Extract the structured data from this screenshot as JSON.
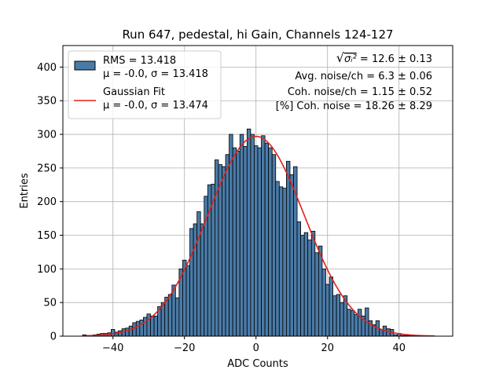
{
  "chart_data": {
    "type": "bar",
    "title": "Run 647, pedestal, hi Gain, Channels 124-127",
    "xlabel": "ADC Counts",
    "ylabel": "Entries",
    "xlim": [
      -54,
      55
    ],
    "ylim": [
      0,
      432
    ],
    "xticks": [
      -40,
      -20,
      0,
      20,
      40
    ],
    "yticks": [
      0,
      50,
      100,
      150,
      200,
      250,
      300,
      350,
      400
    ],
    "grid": true,
    "bin_width": 1,
    "bin_centers": [
      -48,
      -47,
      -46,
      -45,
      -44,
      -43,
      -42,
      -41,
      -40,
      -39,
      -38,
      -37,
      -36,
      -35,
      -34,
      -33,
      -32,
      -31,
      -30,
      -29,
      -28,
      -27,
      -26,
      -25,
      -24,
      -23,
      -22,
      -21,
      -20,
      -19,
      -18,
      -17,
      -16,
      -15,
      -14,
      -13,
      -12,
      -11,
      -10,
      -9,
      -8,
      -7,
      -6,
      -5,
      -4,
      -3,
      -2,
      -1,
      0,
      1,
      2,
      3,
      4,
      5,
      6,
      7,
      8,
      9,
      10,
      11,
      12,
      13,
      14,
      15,
      16,
      17,
      18,
      19,
      20,
      21,
      22,
      23,
      24,
      25,
      26,
      27,
      28,
      29,
      30,
      31,
      32,
      33,
      34,
      35,
      36,
      37,
      38,
      39,
      40,
      41,
      42,
      43,
      44,
      45,
      46,
      47,
      48,
      49,
      50
    ],
    "counts": [
      2,
      1,
      1,
      2,
      3,
      4,
      4,
      5,
      10,
      6,
      8,
      11,
      12,
      15,
      20,
      22,
      24,
      28,
      33,
      30,
      30,
      44,
      50,
      58,
      62,
      76,
      57,
      100,
      113,
      105,
      160,
      167,
      185,
      167,
      208,
      225,
      226,
      262,
      255,
      252,
      270,
      300,
      280,
      275,
      300,
      282,
      308,
      300,
      283,
      280,
      298,
      287,
      280,
      270,
      230,
      222,
      220,
      260,
      240,
      252,
      170,
      150,
      154,
      143,
      156,
      124,
      134,
      100,
      77,
      88,
      60,
      62,
      50,
      60,
      40,
      38,
      32,
      40,
      30,
      42,
      23,
      17,
      23,
      10,
      15,
      11,
      10,
      2,
      4,
      1,
      1,
      1,
      0,
      0,
      0,
      0,
      0,
      0,
      0
    ],
    "series": [
      {
        "name": "RMS = 13.418",
        "name_line2": "μ = -0.0, σ = 13.418",
        "type": "histogram",
        "color": "#4a7ba7",
        "edge_color": "#000000"
      },
      {
        "name": "Gaussian Fit",
        "name_line2": "μ = -0.0, σ = 13.474",
        "type": "line",
        "color": "#e0201b",
        "mu": 0.0,
        "sigma": 13.474,
        "amplitude": 297
      }
    ],
    "legend_position": "top-left",
    "annotations": [
      {
        "prefix": "√",
        "symbol": "σᵢ²",
        "text": " = 12.6 ± 0.13"
      },
      {
        "text": "Avg. noise/ch = 6.3 ± 0.06"
      },
      {
        "text": "Coh. noise/ch = 1.15 ± 0.52"
      },
      {
        "text": "[%] Coh. noise = 18.26 ± 8.29"
      }
    ]
  }
}
